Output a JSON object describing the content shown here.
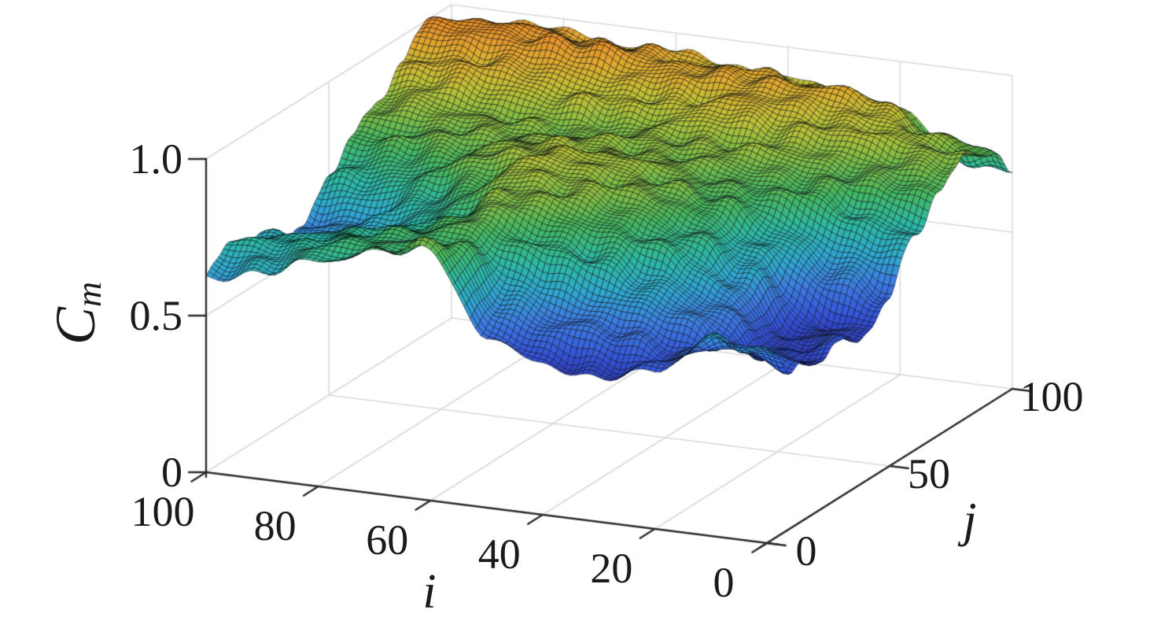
{
  "chart_data": {
    "type": "surface",
    "title": "",
    "legend": null,
    "grid": true,
    "axes": {
      "i": {
        "label": "i",
        "ticks": [
          "100",
          "80",
          "60",
          "40",
          "20",
          "0"
        ],
        "tick_values": [
          100,
          80,
          60,
          40,
          20,
          0
        ],
        "range": [
          0,
          100
        ]
      },
      "j": {
        "label": "j",
        "ticks": [
          "0",
          "50",
          "100"
        ],
        "tick_values": [
          0,
          50,
          100
        ],
        "range": [
          0,
          100
        ]
      },
      "z": {
        "label_main": "C",
        "label_sub": "m",
        "ticks": [
          "1.0",
          "0.5",
          "0"
        ],
        "tick_values": [
          1.0,
          0.5,
          0.0
        ],
        "range": [
          0,
          1
        ]
      }
    },
    "surface": {
      "description": "Height field C_m(i,j) estimated on a 10-step lattice over the 100x100 domain; blue valleys near front-center and right-front, orange ridge along the back with peak ~1.0 near i=80-100, j=90",
      "i_values": [
        0,
        10,
        20,
        30,
        40,
        50,
        60,
        70,
        80,
        90,
        100
      ],
      "j_values": [
        0,
        10,
        20,
        30,
        40,
        50,
        60,
        70,
        80,
        90,
        100
      ],
      "z_grid": [
        [
          0.6,
          0.52,
          0.47,
          0.5,
          0.46,
          0.55,
          0.68,
          0.78,
          0.84,
          0.8,
          0.7
        ],
        [
          0.64,
          0.55,
          0.48,
          0.45,
          0.48,
          0.6,
          0.72,
          0.8,
          0.86,
          0.84,
          0.72
        ],
        [
          0.5,
          0.52,
          0.58,
          0.62,
          0.65,
          0.7,
          0.78,
          0.82,
          0.88,
          0.92,
          0.84
        ],
        [
          0.46,
          0.55,
          0.65,
          0.72,
          0.76,
          0.78,
          0.8,
          0.84,
          0.9,
          0.94,
          0.88
        ],
        [
          0.47,
          0.58,
          0.7,
          0.78,
          0.82,
          0.83,
          0.82,
          0.85,
          0.92,
          0.96,
          0.9
        ],
        [
          0.55,
          0.62,
          0.75,
          0.82,
          0.85,
          0.86,
          0.84,
          0.84,
          0.9,
          0.95,
          0.92
        ],
        [
          0.8,
          0.78,
          0.8,
          0.84,
          0.87,
          0.88,
          0.85,
          0.82,
          0.88,
          0.96,
          0.94
        ],
        [
          0.77,
          0.76,
          0.75,
          0.72,
          0.78,
          0.84,
          0.84,
          0.82,
          0.9,
          0.98,
          0.95
        ],
        [
          0.72,
          0.74,
          0.72,
          0.66,
          0.7,
          0.78,
          0.82,
          0.84,
          0.92,
          1.0,
          0.96
        ],
        [
          0.66,
          0.7,
          0.68,
          0.6,
          0.62,
          0.72,
          0.8,
          0.86,
          0.94,
          1.0,
          0.97
        ],
        [
          0.63,
          0.68,
          0.66,
          0.58,
          0.6,
          0.7,
          0.78,
          0.84,
          0.92,
          1.0,
          0.95
        ]
      ],
      "z_display_range_est": [
        0.45,
        1.0
      ]
    },
    "colormap": {
      "stops": [
        {
          "t": 0.0,
          "color": "#2a33ad"
        },
        {
          "t": 0.12,
          "color": "#3453d8"
        },
        {
          "t": 0.25,
          "color": "#3d7ce2"
        },
        {
          "t": 0.36,
          "color": "#2fa8cf"
        },
        {
          "t": 0.48,
          "color": "#2db9a1"
        },
        {
          "t": 0.6,
          "color": "#44b75f"
        },
        {
          "t": 0.7,
          "color": "#84bc42"
        },
        {
          "t": 0.8,
          "color": "#bec135"
        },
        {
          "t": 0.9,
          "color": "#dfab2e"
        },
        {
          "t": 1.0,
          "color": "#e88f28"
        }
      ],
      "value_range": [
        0.43,
        1.005
      ]
    },
    "colors": {
      "background": "#ffffff",
      "axis_line": "#2b2b2b",
      "box_grid": "#d9d9d9",
      "mesh_edge": "#000000",
      "text": "#1a1a1a"
    }
  }
}
